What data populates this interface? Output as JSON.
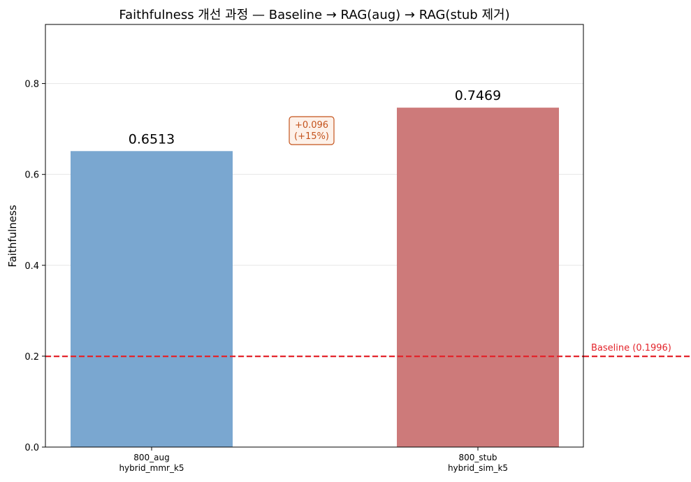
{
  "chart_data": {
    "type": "bar",
    "title": "Faithfulness 개선 과정 — Baseline → RAG(aug) → RAG(stub 제거)",
    "xlabel": "",
    "ylabel": "Faithfulness",
    "ylim": [
      0,
      0.93
    ],
    "yticks": [
      "0.0",
      "0.2",
      "0.4",
      "0.6",
      "0.8"
    ],
    "grid": true,
    "categories": [
      {
        "line1": "800_aug",
        "line2": "hybrid_mmr_k5"
      },
      {
        "line1": "800_stub",
        "line2": "hybrid_sim_k5"
      }
    ],
    "values": [
      0.6513,
      0.7469
    ],
    "value_labels": [
      "0.6513",
      "0.7469"
    ],
    "colors": [
      "#7aa7d0",
      "#cd7a7a"
    ],
    "baseline": {
      "value": 0.1996,
      "label": "Baseline (0.1996)",
      "color": "#e3242b"
    },
    "annotation": {
      "line1": "+0.096",
      "line2": "(+15%)",
      "color": "#c4531c",
      "fill": "#fdf1e9"
    }
  }
}
